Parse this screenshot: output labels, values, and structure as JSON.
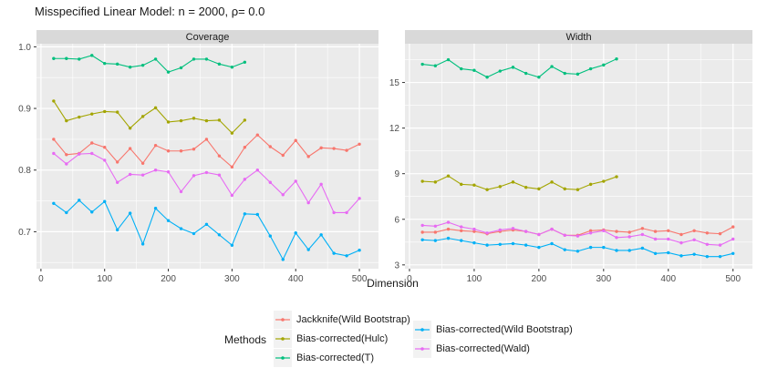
{
  "chart_data": {
    "type": "line",
    "title": "Misspecified Linear Model: n = 2000, ρ= 0.0",
    "xlabel": "Dimension",
    "xlim": [
      -7,
      530
    ],
    "xticks": [
      0,
      100,
      200,
      300,
      400,
      500
    ],
    "xtick_labels": [
      "0",
      "100",
      "200",
      "300",
      "400",
      "500"
    ],
    "xminor": [
      50,
      150,
      250,
      350,
      450
    ],
    "grid": true,
    "legend_position": "bottom",
    "colors": {
      "panel_bg": "#ebebeb",
      "strip_bg": "#d9d9d9",
      "grid": "#ffffff",
      "tick_mark": "#333333",
      "tick_text": "#4d4d4d",
      "text": "#1a1a1a"
    },
    "facets": [
      {
        "label": "Coverage",
        "key": "coverage",
        "ylim": [
          0.64,
          1.005
        ],
        "yticks": [
          0.7,
          0.8,
          0.9,
          1.0
        ],
        "ytick_labels": [
          "0.7",
          "0.8",
          "0.9",
          "1.0"
        ],
        "yminor": [
          0.65,
          0.75,
          0.85,
          0.95
        ]
      },
      {
        "label": "Width",
        "key": "width",
        "ylim": [
          2.75,
          17.55
        ],
        "yticks": [
          3,
          6,
          9,
          12,
          15
        ],
        "ytick_labels": [
          "3",
          "6",
          "9",
          "12",
          "15"
        ],
        "yminor": [
          4.5,
          7.5,
          10.5,
          13.5,
          16.5
        ]
      }
    ],
    "series": [
      {
        "name": "Jackknife(Wild Bootstrap)",
        "color": "#F8766D",
        "x": [
          20,
          40,
          60,
          80,
          100,
          120,
          140,
          160,
          180,
          200,
          220,
          240,
          260,
          280,
          300,
          320,
          340,
          360,
          380,
          400,
          420,
          440,
          460,
          480,
          500
        ],
        "coverage": [
          0.85,
          0.825,
          0.827,
          0.844,
          0.837,
          0.813,
          0.835,
          0.811,
          0.84,
          0.831,
          0.831,
          0.834,
          0.85,
          0.823,
          0.805,
          0.837,
          0.857,
          0.838,
          0.824,
          0.848,
          0.822,
          0.836,
          0.835,
          0.832,
          0.842
        ],
        "width": [
          5.15,
          5.15,
          5.35,
          5.25,
          5.2,
          5.05,
          5.2,
          5.3,
          5.2,
          5.0,
          5.35,
          4.95,
          4.95,
          5.25,
          5.3,
          5.2,
          5.15,
          5.4,
          5.2,
          5.25,
          5.0,
          5.25,
          5.1,
          5.05,
          5.5
        ]
      },
      {
        "name": "Bias-corrected(Hulc)",
        "color": "#A3A500",
        "x": [
          20,
          40,
          60,
          80,
          100,
          120,
          140,
          160,
          180,
          200,
          220,
          240,
          260,
          280,
          300,
          320
        ],
        "coverage": [
          0.912,
          0.88,
          0.886,
          0.891,
          0.895,
          0.894,
          0.868,
          0.887,
          0.901,
          0.878,
          0.88,
          0.884,
          0.88,
          0.881,
          0.86,
          0.881
        ],
        "width": [
          8.5,
          8.45,
          8.85,
          8.3,
          8.25,
          7.95,
          8.15,
          8.45,
          8.1,
          8.0,
          8.45,
          8.0,
          7.95,
          8.3,
          8.5,
          8.8
        ]
      },
      {
        "name": "Bias-corrected(T)",
        "color": "#00BF7D",
        "x": [
          20,
          40,
          60,
          80,
          100,
          120,
          140,
          160,
          180,
          200,
          220,
          240,
          260,
          280,
          300,
          320
        ],
        "coverage": [
          0.981,
          0.981,
          0.98,
          0.986,
          0.973,
          0.972,
          0.967,
          0.97,
          0.98,
          0.959,
          0.966,
          0.98,
          0.98,
          0.972,
          0.967,
          0.975
        ],
        "width": [
          16.2,
          16.1,
          16.5,
          15.9,
          15.8,
          15.35,
          15.75,
          16.0,
          15.6,
          15.35,
          16.05,
          15.6,
          15.55,
          15.9,
          16.15,
          16.55
        ]
      },
      {
        "name": "Bias-corrected(Wild Bootstrap)",
        "color": "#00B0F6",
        "x": [
          20,
          40,
          60,
          80,
          100,
          120,
          140,
          160,
          180,
          200,
          220,
          240,
          260,
          280,
          300,
          320,
          340,
          360,
          380,
          400,
          420,
          440,
          460,
          480,
          500
        ],
        "coverage": [
          0.746,
          0.731,
          0.751,
          0.732,
          0.749,
          0.703,
          0.73,
          0.68,
          0.738,
          0.718,
          0.705,
          0.697,
          0.712,
          0.695,
          0.678,
          0.729,
          0.728,
          0.693,
          0.655,
          0.698,
          0.671,
          0.695,
          0.665,
          0.661,
          0.67
        ],
        "width": [
          4.65,
          4.6,
          4.75,
          4.6,
          4.45,
          4.3,
          4.35,
          4.4,
          4.3,
          4.15,
          4.4,
          4.0,
          3.9,
          4.15,
          4.15,
          3.95,
          3.95,
          4.1,
          3.75,
          3.8,
          3.6,
          3.7,
          3.55,
          3.55,
          3.75
        ]
      },
      {
        "name": "Bias-corrected(Wald)",
        "color": "#E76BF3",
        "x": [
          20,
          40,
          60,
          80,
          100,
          120,
          140,
          160,
          180,
          200,
          220,
          240,
          260,
          280,
          300,
          320,
          340,
          360,
          380,
          400,
          420,
          440,
          460,
          480,
          500
        ],
        "coverage": [
          0.827,
          0.81,
          0.826,
          0.827,
          0.816,
          0.78,
          0.793,
          0.792,
          0.8,
          0.797,
          0.765,
          0.791,
          0.796,
          0.792,
          0.759,
          0.785,
          0.8,
          0.78,
          0.76,
          0.782,
          0.747,
          0.777,
          0.731,
          0.731,
          0.754
        ],
        "width": [
          5.6,
          5.55,
          5.8,
          5.5,
          5.35,
          5.1,
          5.3,
          5.4,
          5.2,
          5.0,
          5.35,
          4.95,
          4.9,
          5.1,
          5.25,
          4.8,
          4.85,
          5.0,
          4.7,
          4.7,
          4.45,
          4.65,
          4.35,
          4.3,
          4.7
        ]
      }
    ],
    "legend": {
      "title": "Methods",
      "columns": [
        [
          0,
          1,
          2
        ],
        [
          3,
          4
        ]
      ]
    }
  }
}
